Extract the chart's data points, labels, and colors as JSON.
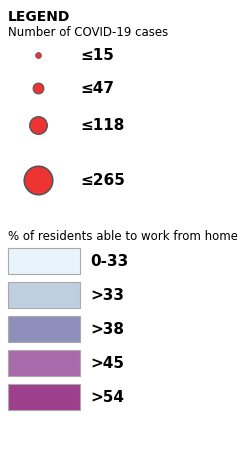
{
  "title": "LEGEND",
  "subtitle_circles": "Number of COVID-19 cases",
  "subtitle_boxes": "% of residents able to work from home",
  "circle_labels": [
    "≤15",
    "≤47",
    "≤118",
    "≤265"
  ],
  "circle_sizes": [
    18,
    60,
    160,
    420
  ],
  "circle_color": "#ee3333",
  "circle_edge_color": "#555555",
  "circle_edge_width": [
    0.5,
    0.8,
    1.0,
    1.2
  ],
  "box_labels": [
    "0-33",
    ">33",
    ">38",
    ">45",
    ">54"
  ],
  "box_colors": [
    "#e8f4fb",
    "#bfcfe0",
    "#8e8fbb",
    "#a86aaa",
    "#9e3f8e"
  ],
  "box_edge_color": "#aaaaaa",
  "background_color": "#ffffff",
  "title_fontsize": 10,
  "subtitle_fontsize": 8.5,
  "label_fontsize": 11
}
